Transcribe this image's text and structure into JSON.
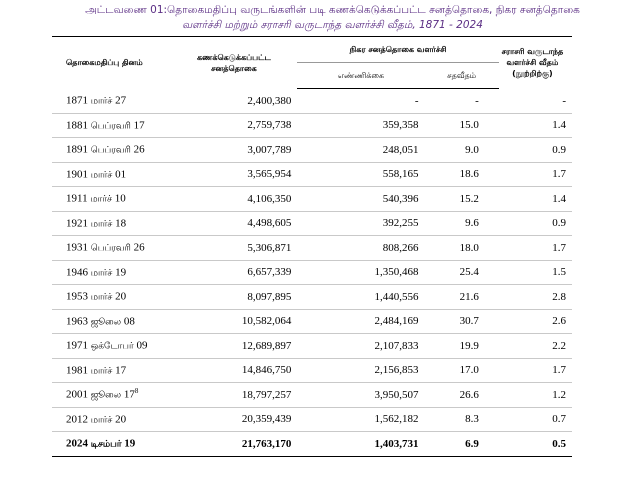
{
  "title": {
    "line1": "அட்டவணை 01:தொகைமதிப்பு வருடங்களின் படி கணக்கெடுக்கப்பட்ட சனத்தொகை, நிகர சனத்தொகை",
    "line2": "வளர்ச்சி மற்றும் சராசரி வருடாந்த வளர்ச்சி வீதம், 1871 - 2024"
  },
  "headers": {
    "date": "தொகைமதிப்பு தினம்",
    "enumerated": "கணக்கெடுக்கப்பட்ட சனத்தொகை",
    "net_growth": "நிகர சனத்தொகை வளர்ச்சி",
    "number": "எண்ணிக்கை",
    "percent": "சதவீதம்",
    "avg_growth": "சராசரி வருடாந்த வளர்ச்சி வீதம் (நூற்றிற்கு)"
  },
  "rows": [
    {
      "year": "1871",
      "month": "மார்ச்",
      "day": "27",
      "sup": "",
      "population": "2,400,380",
      "number": "-",
      "percent": "-",
      "avg": "-"
    },
    {
      "year": "1881",
      "month": "பெப்ரவரி",
      "day": "17",
      "sup": "",
      "population": "2,759,738",
      "number": "359,358",
      "percent": "15.0",
      "avg": "1.4"
    },
    {
      "year": "1891",
      "month": "பெப்ரவரி",
      "day": "26",
      "sup": "",
      "population": "3,007,789",
      "number": "248,051",
      "percent": "9.0",
      "avg": "0.9"
    },
    {
      "year": "1901",
      "month": "மார்ச்",
      "day": "01",
      "sup": "",
      "population": "3,565,954",
      "number": "558,165",
      "percent": "18.6",
      "avg": "1.7"
    },
    {
      "year": "1911",
      "month": "மார்ச்",
      "day": "10",
      "sup": "",
      "population": "4,106,350",
      "number": "540,396",
      "percent": "15.2",
      "avg": "1.4"
    },
    {
      "year": "1921",
      "month": "மார்ச்",
      "day": "18",
      "sup": "",
      "population": "4,498,605",
      "number": "392,255",
      "percent": "9.6",
      "avg": "0.9"
    },
    {
      "year": "1931",
      "month": "பெப்ரவரி",
      "day": "26",
      "sup": "",
      "population": "5,306,871",
      "number": "808,266",
      "percent": "18.0",
      "avg": "1.7"
    },
    {
      "year": "1946",
      "month": "மார்ச்",
      "day": "19",
      "sup": "",
      "population": "6,657,339",
      "number": "1,350,468",
      "percent": "25.4",
      "avg": "1.5"
    },
    {
      "year": "1953",
      "month": "மார்ச்",
      "day": "20",
      "sup": "",
      "population": "8,097,895",
      "number": "1,440,556",
      "percent": "21.6",
      "avg": "2.8"
    },
    {
      "year": "1963",
      "month": "ஜூலை",
      "day": "08",
      "sup": "",
      "population": "10,582,064",
      "number": "2,484,169",
      "percent": "30.7",
      "avg": "2.6"
    },
    {
      "year": "1971",
      "month": "ஒக்டோபர்",
      "day": "09",
      "sup": "",
      "population": "12,689,897",
      "number": "2,107,833",
      "percent": "19.9",
      "avg": "2.2"
    },
    {
      "year": "1981",
      "month": "மார்ச்",
      "day": "17",
      "sup": "",
      "population": "14,846,750",
      "number": "2,156,853",
      "percent": "17.0",
      "avg": "1.7"
    },
    {
      "year": "2001",
      "month": "ஜூலை",
      "day": "17",
      "sup": "8",
      "population": "18,797,257",
      "number": "3,950,507",
      "percent": "26.6",
      "avg": "1.2"
    },
    {
      "year": "2012",
      "month": "மார்ச்",
      "day": "20",
      "sup": "",
      "population": "20,359,439",
      "number": "1,562,182",
      "percent": "8.3",
      "avg": "0.7"
    },
    {
      "year": "2024",
      "month": "டிசம்பர்",
      "day": "19",
      "sup": "",
      "population": "21,763,170",
      "number": "1,403,731",
      "percent": "6.9",
      "avg": "0.5"
    }
  ]
}
